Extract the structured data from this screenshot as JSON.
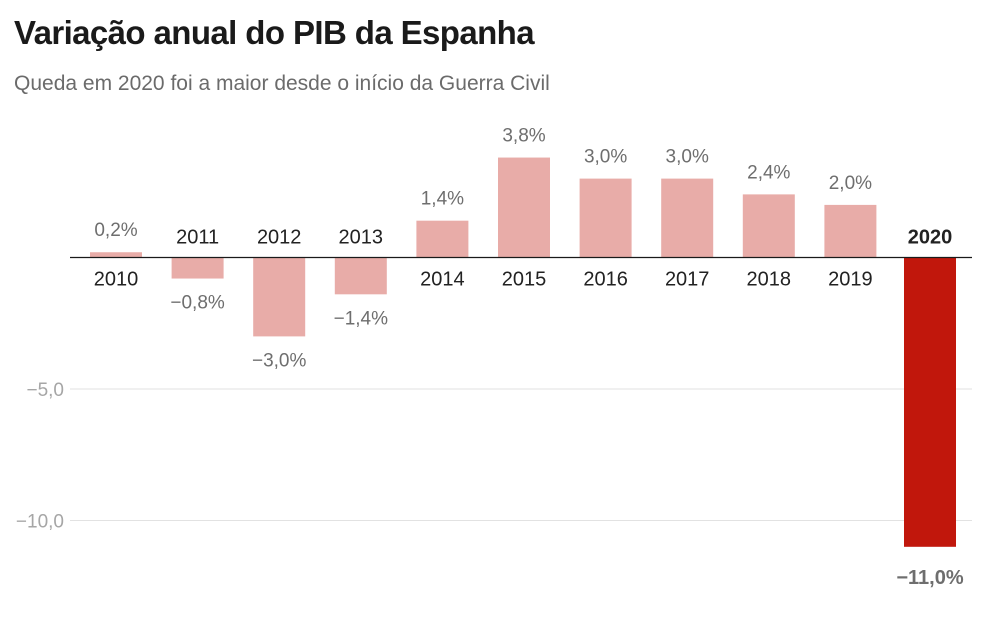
{
  "title": "Variação anual do PIB da Espanha",
  "subtitle": "Queda em 2020 foi a maior desde o início da Guerra Civil",
  "colors": {
    "bar": "#e8aca8",
    "highlight": "#c1170c",
    "value_text": "#6e6e6e",
    "tick_text": "#a6a6a6",
    "year_text": "#222222",
    "grid": "#e2e2e2",
    "axis": "#1a1a1a"
  },
  "chart_data": {
    "type": "bar",
    "title": "Variação anual do PIB da Espanha",
    "subtitle": "Queda em 2020 foi a maior desde o início da Guerra Civil",
    "xlabel": "",
    "ylabel": "",
    "ylim": [
      -11.5,
      4.5
    ],
    "grid": true,
    "categories": [
      "2010",
      "2011",
      "2012",
      "2013",
      "2014",
      "2015",
      "2016",
      "2017",
      "2018",
      "2019",
      "2020"
    ],
    "values": [
      0.2,
      -0.8,
      -3.0,
      -1.4,
      1.4,
      3.8,
      3.0,
      3.0,
      2.4,
      2.0,
      -11.0
    ],
    "value_labels": [
      "0,2%",
      "−0,8%",
      "−3,0%",
      "−1,4%",
      "1,4%",
      "3,8%",
      "3,0%",
      "3,0%",
      "2,4%",
      "2,0%",
      "−11,0%"
    ],
    "highlight": "2020",
    "y_ticks": [
      {
        "value": -5,
        "label": "−5,0"
      },
      {
        "value": -10,
        "label": "−10,0"
      }
    ]
  }
}
